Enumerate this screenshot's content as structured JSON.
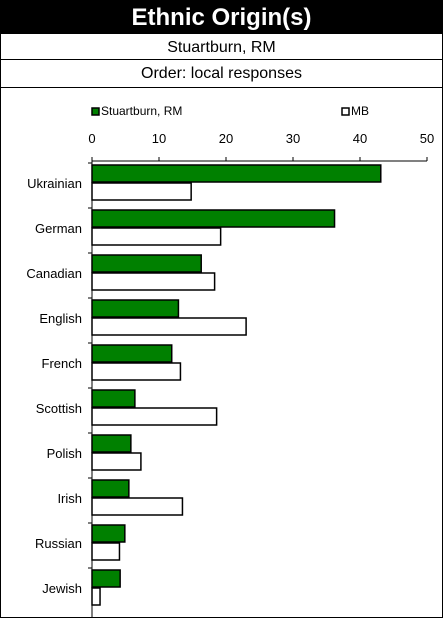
{
  "header": {
    "title": "Ethnic Origin(s)",
    "place": "Stuartburn, RM",
    "order": "Order: local responses"
  },
  "chart_data": {
    "type": "bar",
    "orientation": "horizontal",
    "categories": [
      "Ukrainian",
      "German",
      "Canadian",
      "English",
      "French",
      "Scottish",
      "Polish",
      "Irish",
      "Russian",
      "Jewish"
    ],
    "series": [
      {
        "name": "Stuartburn, RM",
        "color": "#008000",
        "values": [
          43.1,
          36.2,
          16.3,
          12.9,
          11.9,
          6.4,
          5.8,
          5.5,
          4.9,
          4.2
        ]
      },
      {
        "name": "MB",
        "color": "#ffffff",
        "values": [
          14.8,
          19.2,
          18.3,
          23.0,
          13.2,
          18.6,
          7.3,
          13.5,
          4.1,
          1.2
        ]
      }
    ],
    "xaxis": {
      "ticks": [
        0,
        10,
        20,
        30,
        40,
        50
      ],
      "range": [
        0,
        50
      ],
      "position": "top"
    },
    "legend": {
      "position": "top"
    },
    "grid": false
  }
}
